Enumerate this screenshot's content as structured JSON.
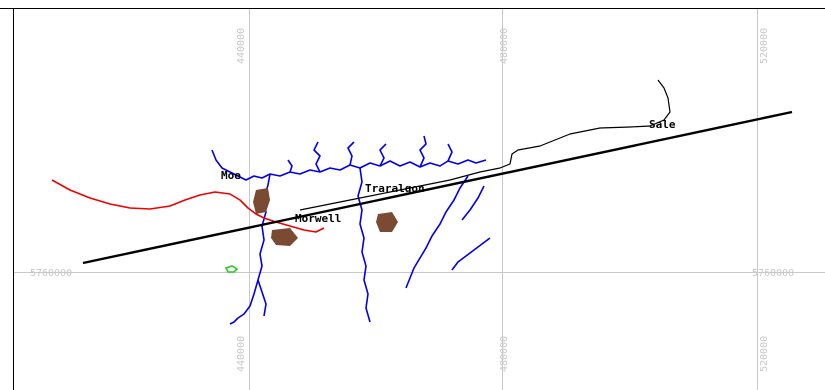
{
  "map": {
    "grid_labels": {
      "top": [
        "440000",
        "480000",
        "520000"
      ],
      "bottom": [
        "440000",
        "480000",
        "520000"
      ],
      "left": "5760000",
      "right": "5760000"
    },
    "places": [
      "Moe",
      "Traralgon",
      "Morwell",
      "Sale"
    ],
    "colors": {
      "rivers": "#0000ee",
      "road": "#ee0000",
      "railway": "#000000",
      "urban": "#7a4a33",
      "grid": "#c8c8c8",
      "lake": "#22cc22"
    }
  }
}
